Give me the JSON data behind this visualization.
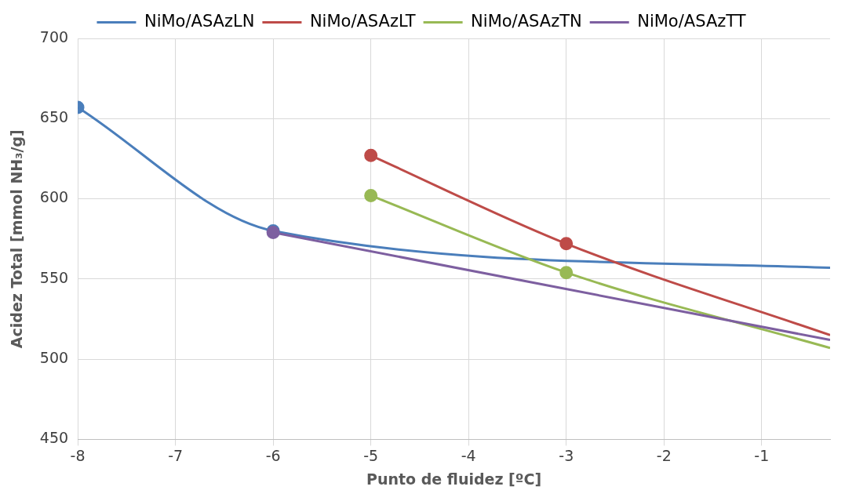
{
  "chart_data": {
    "type": "line",
    "xlabel": "Punto de fluidez [ºC]",
    "ylabel": "Acidez Total [mmol NH₃/g]",
    "xlim": [
      -8,
      -0.3
    ],
    "xticks": [
      -8,
      -7,
      -6,
      -5,
      -4,
      -3,
      -2,
      -1
    ],
    "ylim": [
      450,
      700
    ],
    "yticks": [
      450,
      500,
      550,
      600,
      650,
      700
    ],
    "grid": true,
    "legend": "top",
    "marker": "circle",
    "line_style": "solid",
    "series": [
      {
        "name": "NiMo/ASAzLN",
        "color": "#4a7ebb",
        "x": [
          -8,
          -6,
          -0.3
        ],
        "values": [
          657,
          580,
          557
        ]
      },
      {
        "name": "NiMo/ASAzLT",
        "color": "#be4b48",
        "x": [
          -5,
          -3,
          -0.3
        ],
        "values": [
          627,
          572,
          515
        ]
      },
      {
        "name": "NiMo/ASAzTN",
        "color": "#98b954",
        "x": [
          -5,
          -3,
          -0.3
        ],
        "values": [
          602,
          554,
          507
        ]
      },
      {
        "name": "NiMo/ASAzTT",
        "color": "#7d5fa0",
        "x": [
          -6,
          -0.3
        ],
        "values": [
          579,
          512
        ]
      }
    ]
  }
}
